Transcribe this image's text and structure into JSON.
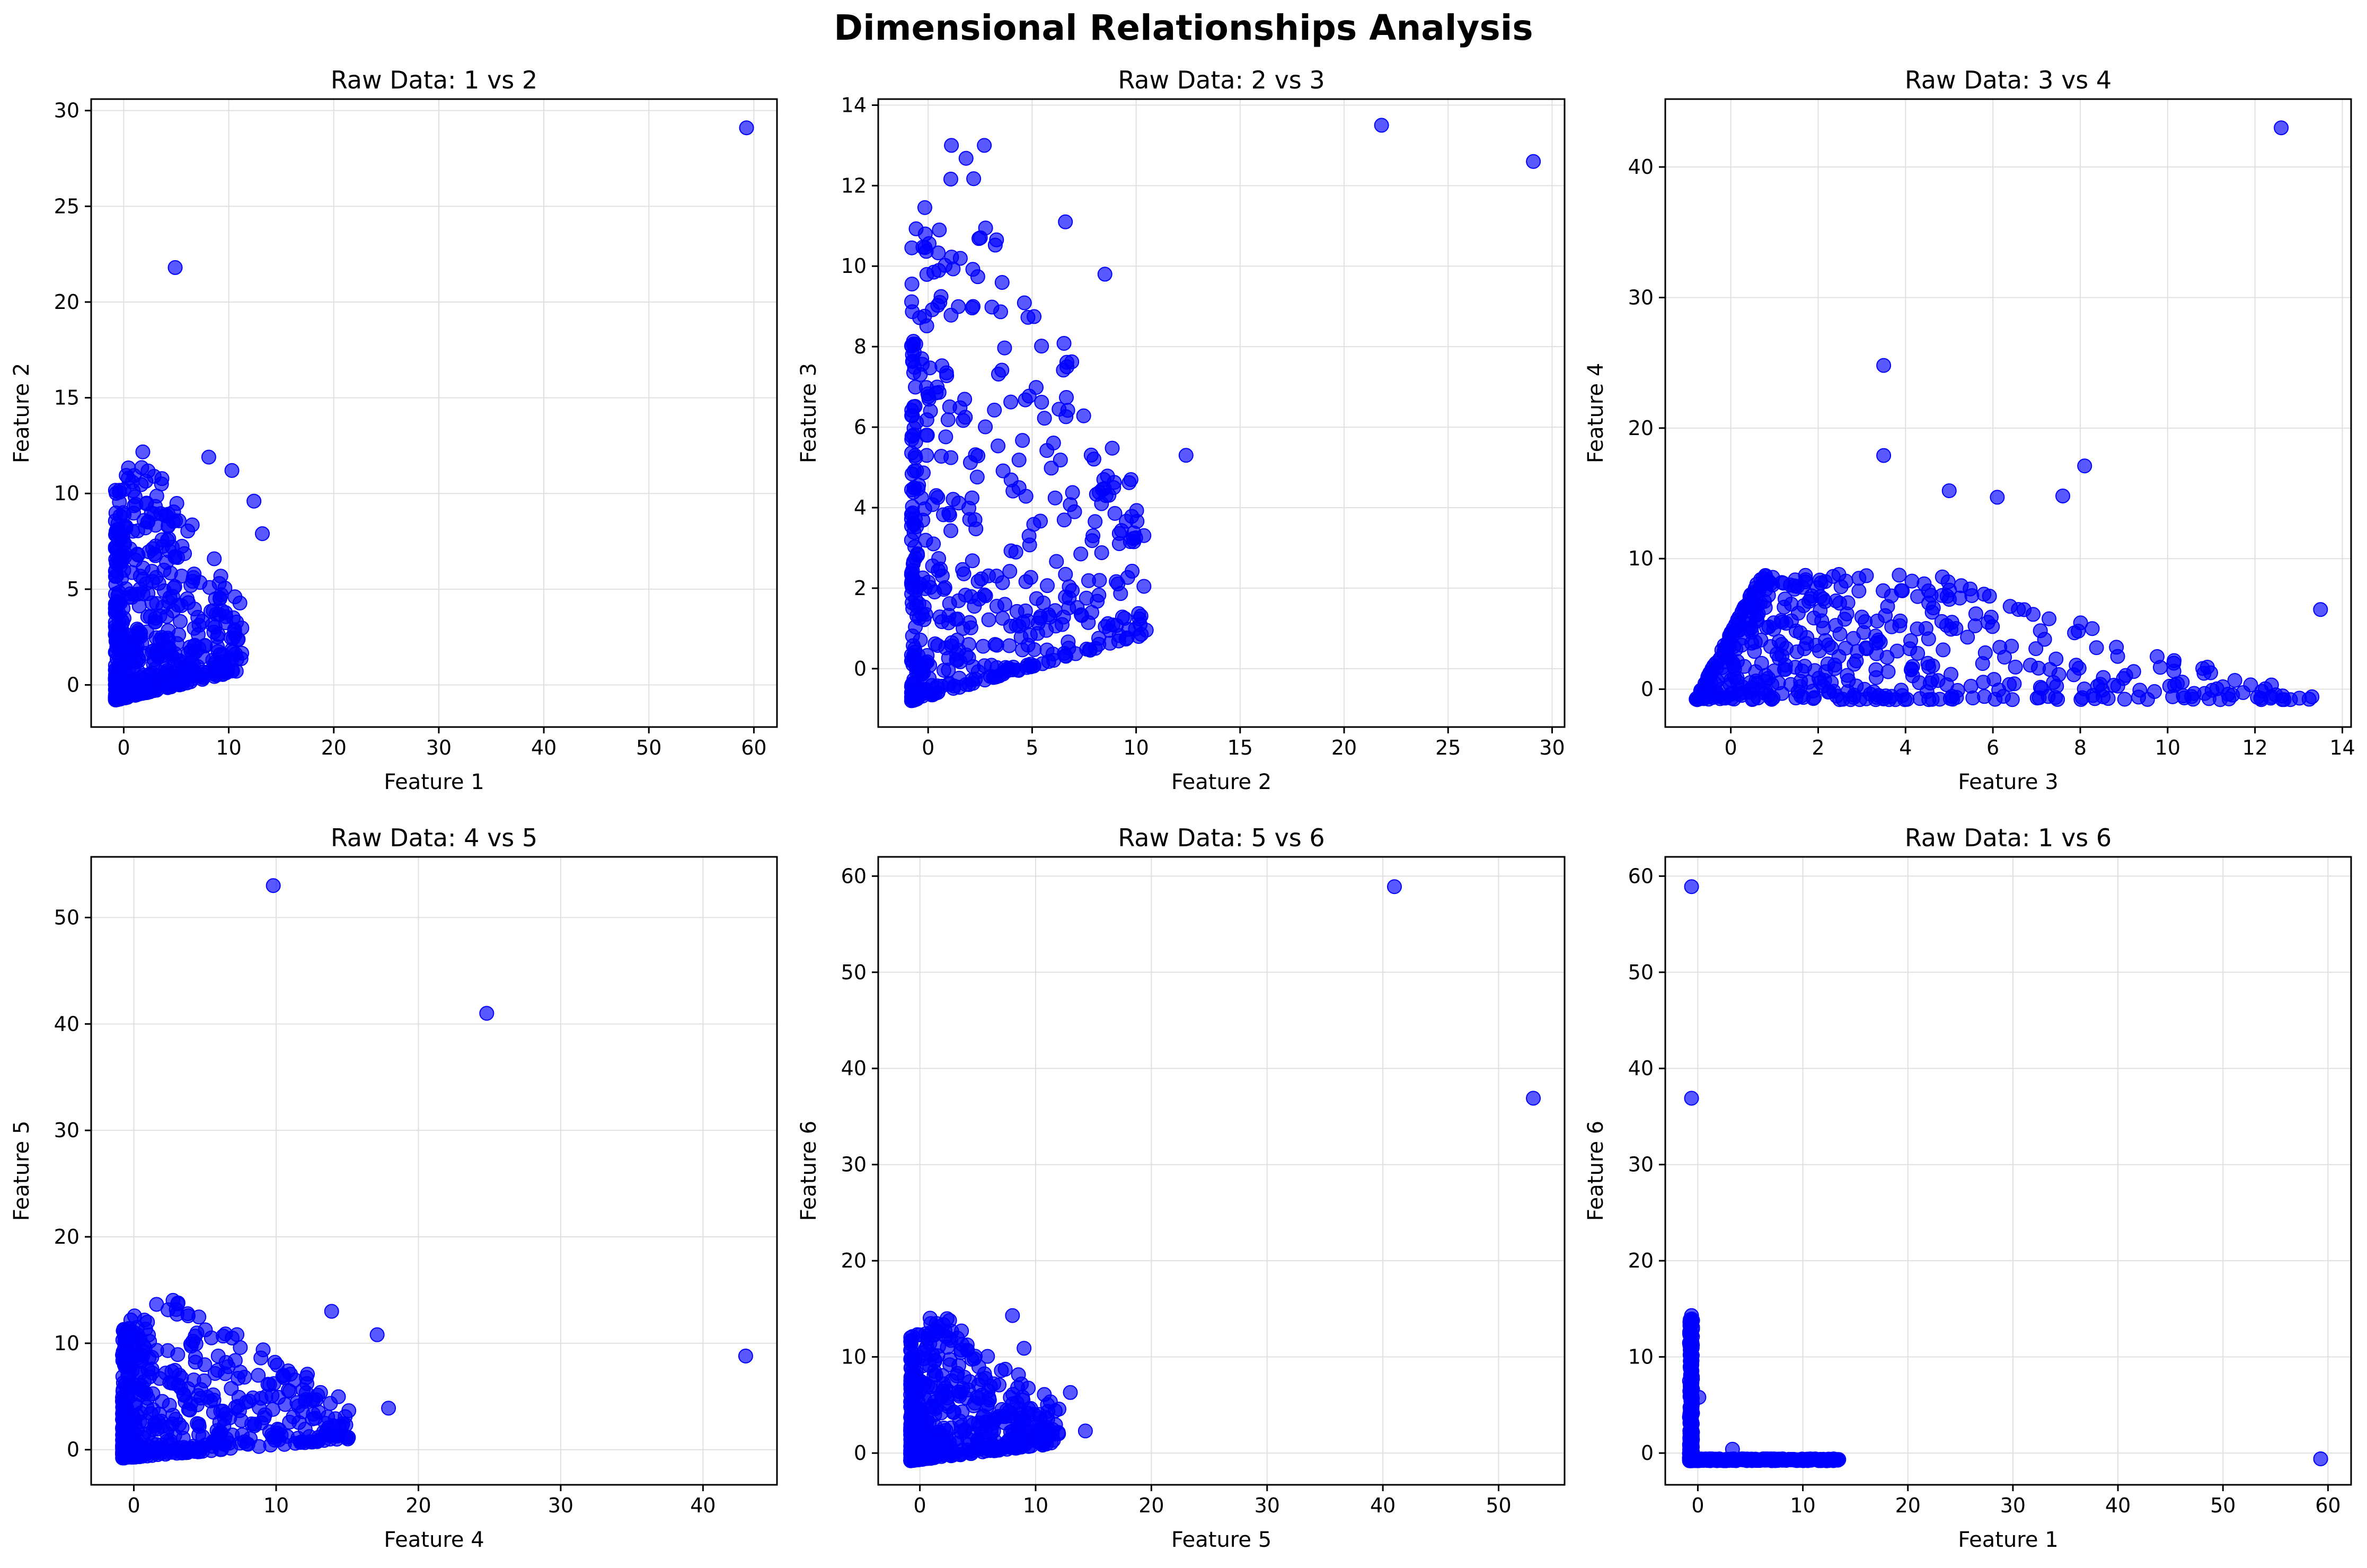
{
  "figure": {
    "title": "Dimensional Relationships Analysis"
  },
  "colors": {
    "points": "#0000ff",
    "axes": "#000000",
    "grid": "#e0e0e0"
  },
  "chart_data": [
    {
      "type": "scatter",
      "title": "Raw Data: 1 vs 2",
      "xlabel": "Feature 1",
      "ylabel": "Feature 2",
      "xlim": [
        -3.1,
        62.2
      ],
      "ylim": [
        -2.2,
        30.6
      ],
      "xticks": [
        0,
        10,
        20,
        30,
        40,
        50,
        60
      ],
      "yticks": [
        0,
        5,
        10,
        15,
        20,
        25,
        30
      ],
      "grid": true,
      "cluster": {
        "x": [
          -0.8,
          13.5
        ],
        "y": [
          -0.8,
          12.5
        ],
        "shape": "fan-up"
      },
      "outliers": [
        [
          59.3,
          29.1
        ],
        [
          4.9,
          21.8
        ],
        [
          13.2,
          7.9
        ],
        [
          12.4,
          9.6
        ],
        [
          10.3,
          11.2
        ],
        [
          8.1,
          11.9
        ]
      ]
    },
    {
      "type": "scatter",
      "title": "Raw Data: 2 vs 3",
      "xlabel": "Feature 2",
      "ylabel": "Feature 3",
      "xlim": [
        -2.4,
        30.6
      ],
      "ylim": [
        -1.45,
        14.15
      ],
      "xticks": [
        0,
        5,
        10,
        15,
        20,
        25,
        30
      ],
      "yticks": [
        0,
        2,
        4,
        6,
        8,
        10,
        12,
        14
      ],
      "grid": true,
      "cluster": {
        "x": [
          -0.8,
          12.5
        ],
        "y": [
          -0.8,
          13.0
        ],
        "shape": "fan-up"
      },
      "outliers": [
        [
          21.8,
          13.5
        ],
        [
          29.1,
          12.6
        ],
        [
          12.4,
          5.3
        ],
        [
          8.5,
          9.8
        ],
        [
          2.7,
          13.0
        ],
        [
          6.6,
          11.1
        ]
      ]
    },
    {
      "type": "scatter",
      "title": "Raw Data: 3 vs 4",
      "xlabel": "Feature 3",
      "ylabel": "Feature 4",
      "xlim": [
        -1.5,
        14.2
      ],
      "ylim": [
        -2.9,
        45.2
      ],
      "xticks": [
        0,
        2,
        4,
        6,
        8,
        10,
        12,
        14
      ],
      "yticks": [
        0,
        10,
        20,
        30,
        40
      ],
      "grid": true,
      "cluster": {
        "x": [
          -0.8,
          13.5
        ],
        "y": [
          -0.8,
          12.0
        ],
        "shape": "fan-right"
      },
      "outliers": [
        [
          12.6,
          43.0
        ],
        [
          3.5,
          24.8
        ],
        [
          3.5,
          17.9
        ],
        [
          8.1,
          17.1
        ],
        [
          7.6,
          14.8
        ],
        [
          6.1,
          14.7
        ],
        [
          5.0,
          15.2
        ],
        [
          13.5,
          6.1
        ]
      ]
    },
    {
      "type": "scatter",
      "title": "Raw Data: 4 vs 5",
      "xlabel": "Feature 4",
      "ylabel": "Feature 5",
      "xlim": [
        -3.0,
        45.2
      ],
      "ylim": [
        -3.3,
        55.7
      ],
      "xticks": [
        0,
        10,
        20,
        30,
        40
      ],
      "yticks": [
        0,
        10,
        20,
        30,
        40,
        50
      ],
      "grid": true,
      "cluster": {
        "x": [
          -0.8,
          18.0
        ],
        "y": [
          -0.8,
          14.3
        ],
        "shape": "fan-up"
      },
      "outliers": [
        [
          9.8,
          53.0
        ],
        [
          24.8,
          41.0
        ],
        [
          43.0,
          8.8
        ],
        [
          17.1,
          10.8
        ],
        [
          13.9,
          13.0
        ],
        [
          17.9,
          3.9
        ]
      ]
    },
    {
      "type": "scatter",
      "title": "Raw Data: 5 vs 6",
      "xlabel": "Feature 5",
      "ylabel": "Feature 6",
      "xlim": [
        -3.6,
        55.7
      ],
      "ylim": [
        -3.3,
        62.0
      ],
      "xticks": [
        0,
        10,
        20,
        30,
        40,
        50
      ],
      "yticks": [
        0,
        10,
        20,
        30,
        40,
        50,
        60
      ],
      "grid": true,
      "cluster": {
        "x": [
          -0.8,
          14.3
        ],
        "y": [
          -0.8,
          14.5
        ],
        "shape": "fan-up"
      },
      "outliers": [
        [
          41.0,
          58.9
        ],
        [
          53.0,
          36.9
        ],
        [
          14.3,
          2.3
        ],
        [
          13.0,
          6.3
        ],
        [
          8.0,
          14.3
        ],
        [
          9.0,
          10.9
        ]
      ]
    },
    {
      "type": "scatter",
      "title": "Raw Data: 1 vs 6",
      "xlabel": "Feature 1",
      "ylabel": "Feature 6",
      "xlim": [
        -3.1,
        62.2
      ],
      "ylim": [
        -3.3,
        62.0
      ],
      "xticks": [
        0,
        10,
        20,
        30,
        40,
        50,
        60
      ],
      "yticks": [
        0,
        10,
        20,
        30,
        40,
        50,
        60
      ],
      "grid": true,
      "cluster": {
        "x": [
          -0.8,
          13.5
        ],
        "y": [
          -0.8,
          14.3
        ],
        "shape": "L"
      },
      "outliers": [
        [
          -0.6,
          58.9
        ],
        [
          -0.6,
          36.9
        ],
        [
          59.3,
          -0.6
        ],
        [
          -0.6,
          14.3
        ],
        [
          0.1,
          5.8
        ],
        [
          3.3,
          0.4
        ]
      ]
    }
  ]
}
